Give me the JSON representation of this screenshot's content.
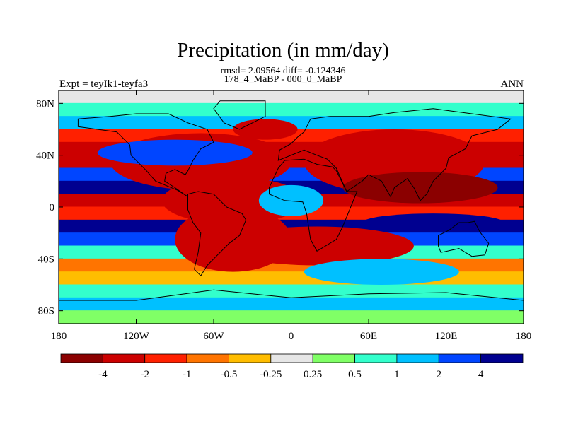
{
  "title": "Precipitation (in mm/day)",
  "subtitle_line1": "rmsd= 2.09564 diff= -0.124346",
  "subtitle_line2": "178_4_MaBP - 000_0_MaBP",
  "left_label": "Expt = teyIk1-teyfa3",
  "right_label": "ANN",
  "chart_data": {
    "type": "heatmap",
    "title": "Precipitation (in mm/day)",
    "variable": "Precipitation difference",
    "units": "mm/day",
    "xlabel": "",
    "ylabel": "",
    "x_ticks": [
      "180",
      "120W",
      "60W",
      "0",
      "60E",
      "120E",
      "180"
    ],
    "x_tick_values": [
      -180,
      -120,
      -60,
      0,
      60,
      120,
      180
    ],
    "y_ticks": [
      "80N",
      "40N",
      "0",
      "40S",
      "80S"
    ],
    "y_tick_values": [
      80,
      40,
      0,
      -40,
      -80
    ],
    "xlim": [
      -180,
      180
    ],
    "ylim": [
      -90,
      90
    ],
    "colorbar": {
      "labels": [
        "-4",
        "-2",
        "-1",
        "-0.5",
        "-0.25",
        "0.25",
        "0.5",
        "1",
        "2",
        "4"
      ],
      "levels": [
        -4,
        -2,
        -1,
        -0.5,
        -0.25,
        0.25,
        0.5,
        1,
        2,
        4
      ],
      "colors": [
        "#8b0000",
        "#cc0000",
        "#ff2000",
        "#ff7400",
        "#ffbd00",
        "#e6e6e6",
        "#80ff66",
        "#33ffcc",
        "#00c0ff",
        "#0045ff",
        "#000090"
      ],
      "placement": "bottom"
    },
    "zonal_bands": [
      {
        "lat": 85,
        "value": 0.1
      },
      {
        "lat": 75,
        "value": 0.6
      },
      {
        "lat": 65,
        "value": 1.2
      },
      {
        "lat": 55,
        "value": -1.5
      },
      {
        "lat": 45,
        "value": -2.5
      },
      {
        "lat": 35,
        "value": -3
      },
      {
        "lat": 25,
        "value": 2
      },
      {
        "lat": 15,
        "value": 4.5
      },
      {
        "lat": 5,
        "value": -3
      },
      {
        "lat": -5,
        "value": -2
      },
      {
        "lat": -15,
        "value": 5
      },
      {
        "lat": -25,
        "value": 2
      },
      {
        "lat": -35,
        "value": 0.6
      },
      {
        "lat": -45,
        "value": -0.7
      },
      {
        "lat": -55,
        "value": -0.5
      },
      {
        "lat": -65,
        "value": 0.7
      },
      {
        "lat": -75,
        "value": 1.2
      },
      {
        "lat": -85,
        "value": 0.4
      }
    ],
    "features": [
      {
        "lon": -70,
        "lat": 35,
        "rx": 70,
        "ry": 22,
        "value": -3.5
      },
      {
        "lon": -45,
        "lat": 5,
        "rx": 55,
        "ry": 18,
        "value": -3
      },
      {
        "lon": -45,
        "lat": -25,
        "rx": 45,
        "ry": 25,
        "value": -2.5
      },
      {
        "lon": 20,
        "lat": -30,
        "rx": 75,
        "ry": 15,
        "value": -3
      },
      {
        "lon": 0,
        "lat": 5,
        "rx": 25,
        "ry": 12,
        "value": 1.5
      },
      {
        "lon": 80,
        "lat": 35,
        "rx": 70,
        "ry": 25,
        "value": -3.5
      },
      {
        "lon": 100,
        "lat": 15,
        "rx": 60,
        "ry": 12,
        "value": -4.5
      },
      {
        "lon": 110,
        "lat": -12,
        "rx": 55,
        "ry": 7,
        "value": 5
      },
      {
        "lon": -90,
        "lat": 42,
        "rx": 60,
        "ry": 10,
        "value": 2
      },
      {
        "lon": -20,
        "lat": 60,
        "rx": 25,
        "ry": 8,
        "value": -3
      },
      {
        "lon": 70,
        "lat": -50,
        "rx": 60,
        "ry": 10,
        "value": 1
      }
    ]
  }
}
